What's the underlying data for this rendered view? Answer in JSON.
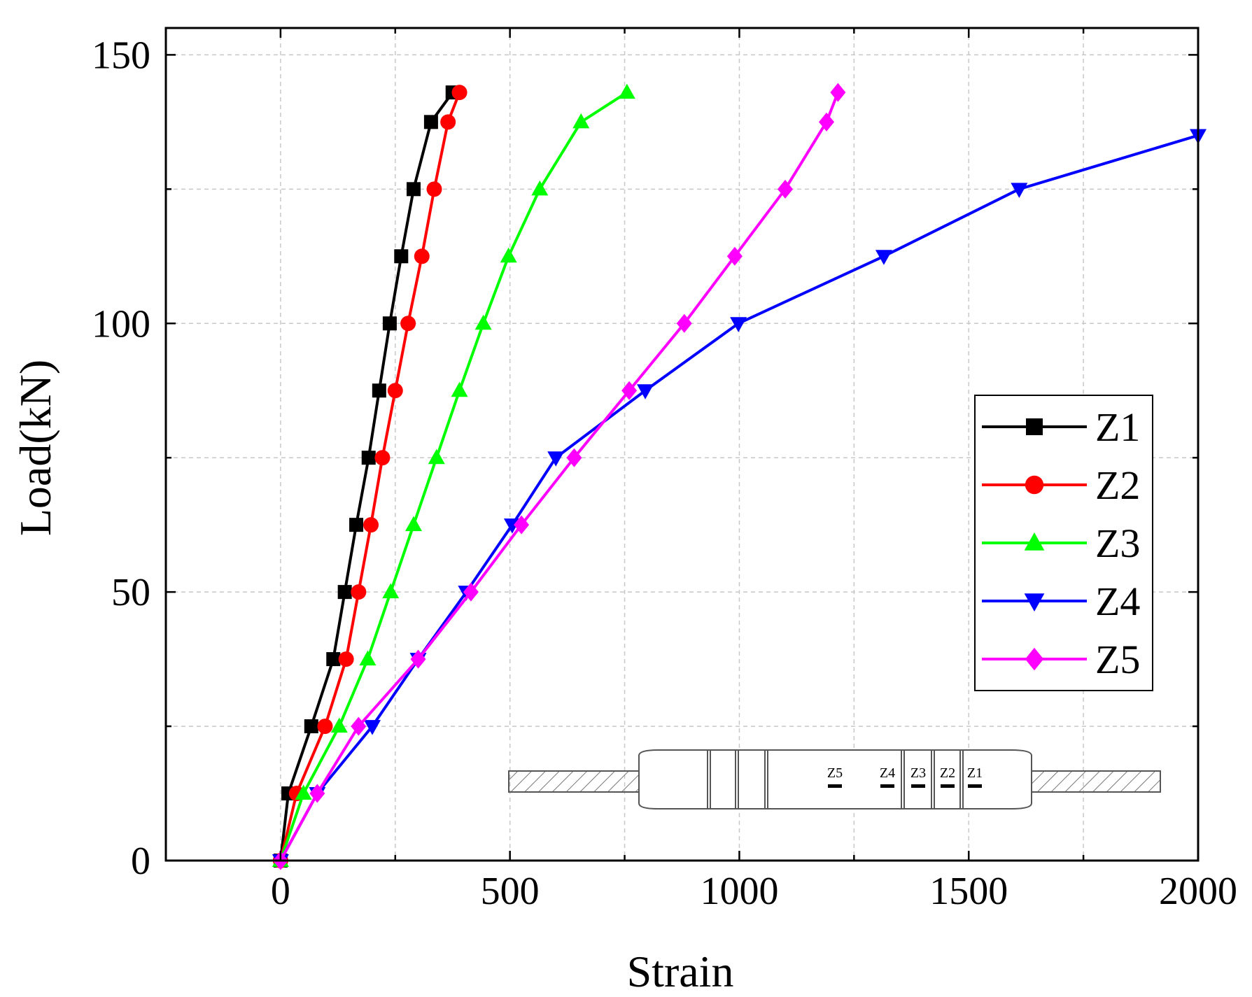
{
  "chart_data": {
    "type": "line",
    "title": "",
    "xlabel": "Strain",
    "ylabel": "Load(kN)",
    "xlim": [
      -250,
      2000
    ],
    "ylim": [
      0,
      155
    ],
    "x_ticks": [
      0,
      500,
      1000,
      1500,
      2000
    ],
    "x_tick_labels": [
      "0",
      "500",
      "1000",
      "1500",
      "2000"
    ],
    "y_ticks": [
      0,
      50,
      100,
      150
    ],
    "y_tick_labels": [
      "0",
      "50",
      "100",
      "150"
    ],
    "grid": true,
    "legend_position": "right",
    "series": [
      {
        "name": "Z1",
        "color": "#000000",
        "marker": "square",
        "x": [
          0,
          17,
          67,
          115,
          140,
          165,
          192,
          215,
          238,
          263,
          290,
          328,
          375
        ],
        "y": [
          0,
          12.5,
          25,
          37.5,
          50,
          62.5,
          75,
          87.5,
          100,
          112.5,
          125,
          137.5,
          143
        ]
      },
      {
        "name": "Z2",
        "color": "#ff0000",
        "marker": "circle",
        "x": [
          0,
          35,
          97,
          143,
          170,
          197,
          222,
          250,
          278,
          308,
          335,
          365,
          390
        ],
        "y": [
          0,
          12.5,
          25,
          37.5,
          50,
          62.5,
          75,
          87.5,
          100,
          112.5,
          125,
          137.5,
          143
        ]
      },
      {
        "name": "Z3",
        "color": "#00ff00",
        "marker": "triangle-up",
        "x": [
          0,
          50,
          128,
          190,
          240,
          290,
          340,
          390,
          442,
          497,
          565,
          655,
          755
        ],
        "y": [
          0,
          12.5,
          25,
          37.5,
          50,
          62.5,
          75,
          87.5,
          100,
          112.5,
          125,
          137.5,
          143
        ]
      },
      {
        "name": "Z4",
        "color": "#0000ff",
        "marker": "triangle-down",
        "x": [
          0,
          80,
          200,
          300,
          405,
          505,
          600,
          795,
          998,
          1315,
          1610,
          2000
        ],
        "y": [
          0,
          12.5,
          25,
          37.5,
          50,
          62.5,
          75,
          87.5,
          100,
          112.5,
          125,
          135
        ]
      },
      {
        "name": "Z5",
        "color": "#ff00ff",
        "marker": "diamond",
        "x": [
          0,
          80,
          170,
          300,
          415,
          525,
          640,
          760,
          880,
          990,
          1100,
          1190,
          1215
        ],
        "y": [
          0,
          12.5,
          25,
          37.5,
          50,
          62.5,
          75,
          87.5,
          100,
          112.5,
          125,
          137.5,
          143
        ]
      }
    ],
    "inset_labels": [
      "Z5",
      "Z4",
      "Z3",
      "Z2",
      "Z1"
    ]
  }
}
